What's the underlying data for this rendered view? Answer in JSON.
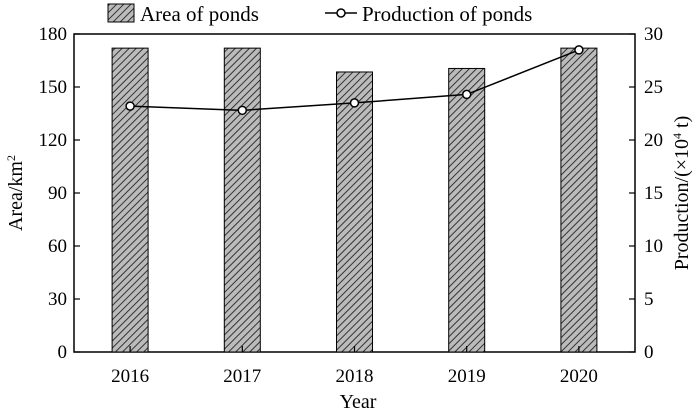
{
  "chart_data": {
    "type": "bar",
    "categories": [
      "2016",
      "2017",
      "2018",
      "2019",
      "2020"
    ],
    "series": [
      {
        "name": "Area of ponds",
        "kind": "bar",
        "axis": "left",
        "values": [
          172,
          172,
          158.5,
          160.5,
          172
        ],
        "pattern": "diagonal-hatch"
      },
      {
        "name": "Production of ponds",
        "kind": "line",
        "axis": "right",
        "values": [
          23.2,
          22.8,
          23.5,
          24.3,
          28.5
        ],
        "marker": "open-circle"
      }
    ],
    "xlabel": "Year",
    "ylabel_left": {
      "main": "Area/km",
      "sup": "2"
    },
    "ylabel_right": {
      "prefix": "Production/(×10",
      "sup": "4",
      "suffix": " t)"
    },
    "ylim_left": [
      0,
      180
    ],
    "yticks_left": [
      0,
      30,
      60,
      90,
      120,
      150,
      180
    ],
    "ylim_right": [
      0,
      30
    ],
    "yticks_right": [
      0,
      5,
      10,
      15,
      20,
      25,
      30
    ],
    "grid": false,
    "legend_position": "top",
    "colors": {
      "bar_fill": "#bbbbbb",
      "hatch": "#333333",
      "line": "#000000",
      "marker_fill": "#ffffff"
    }
  }
}
